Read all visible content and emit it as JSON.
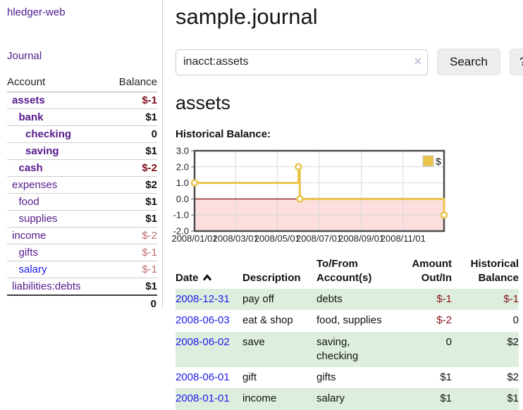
{
  "app": {
    "brand": "hledger-web"
  },
  "nav": {
    "journal": "Journal"
  },
  "sidebar": {
    "header": {
      "account": "Account",
      "balance": "Balance"
    },
    "accounts": [
      {
        "name": "assets",
        "level": 1,
        "bold": true,
        "balance": "$-1",
        "balance_style": "neg-strong"
      },
      {
        "name": "bank",
        "level": 2,
        "bold": true,
        "balance": "$1",
        "balance_style": "pos"
      },
      {
        "name": "checking",
        "level": 3,
        "bold": true,
        "balance": "0",
        "balance_style": "pos"
      },
      {
        "name": "saving",
        "level": 3,
        "bold": true,
        "balance": "$1",
        "balance_style": "pos"
      },
      {
        "name": "cash",
        "level": 2,
        "bold": true,
        "balance": "$-2",
        "balance_style": "neg-strong"
      },
      {
        "name": "expenses",
        "level": 1,
        "bold": false,
        "balance": "$2",
        "balance_style": "pos"
      },
      {
        "name": "food",
        "level": 2,
        "bold": false,
        "balance": "$1",
        "balance_style": "pos"
      },
      {
        "name": "supplies",
        "level": 2,
        "bold": false,
        "balance": "$1",
        "balance_style": "pos"
      },
      {
        "name": "income",
        "level": 1,
        "bold": false,
        "balance": "$-2",
        "balance_style": "neg-soft"
      },
      {
        "name": "gifts",
        "level": 2,
        "bold": false,
        "balance": "$-1",
        "balance_style": "neg-soft"
      },
      {
        "name": "salary",
        "level": 2,
        "bold": false,
        "link_color": "blue",
        "balance": "$-1",
        "balance_style": "neg-soft"
      },
      {
        "name": "liabilities:debts",
        "level": 1,
        "bold": false,
        "balance": "$1",
        "balance_style": "pos"
      }
    ],
    "total": "0"
  },
  "header": {
    "title": "sample.journal"
  },
  "search": {
    "value": "inacct:assets",
    "clear": "×",
    "search_button": "Search",
    "help_button": "?"
  },
  "account_page": {
    "heading": "assets",
    "chart_title": "Historical Balance:"
  },
  "colors": {
    "link_purple": "#551a8b",
    "link_blue": "#1b1be8",
    "negative_dark": "#7d0d1d",
    "negative_soft": "#c06f6f",
    "negative_table": "#881018",
    "row_stripe_green": "#deeede",
    "chart_gold": "#e8c44a",
    "chart_negative_band": "#fcdede",
    "chart_zero_line": "#8b1a1a",
    "chart_grid": "#d8d8d8",
    "chart_border": "#4d4d4d"
  },
  "chart_data": {
    "type": "line",
    "step": "after",
    "title": "Historical Balance:",
    "xlim": [
      "2008-01-01",
      "2008-12-31"
    ],
    "ylim": [
      -2,
      3
    ],
    "y_ticks": [
      "3.0",
      "2.0",
      "1.0",
      "0.0",
      "-1.0",
      "-2.0"
    ],
    "x_ticks": [
      "2008/01/01",
      "2008/03/01",
      "2008/05/01",
      "2008/07/01",
      "2008/09/01",
      "2008/11/01"
    ],
    "grid": true,
    "negative_region_shaded": true,
    "legend": {
      "label": "$",
      "position": "top-right"
    },
    "series": [
      {
        "name": "$",
        "points": [
          {
            "x": "2008-01-01",
            "y": 1
          },
          {
            "x": "2008-06-01",
            "y": 2
          },
          {
            "x": "2008-06-03",
            "y": 0
          },
          {
            "x": "2008-12-31",
            "y": -1
          }
        ]
      }
    ]
  },
  "register": {
    "columns": [
      {
        "label": "Date",
        "sorted": "ascending"
      },
      {
        "label": "Description"
      },
      {
        "label": "To/From\nAccount(s)"
      },
      {
        "label": "Amount\nOut/In"
      },
      {
        "label": "Historical\nBalance"
      }
    ],
    "rows": [
      {
        "date": "2008-12-31",
        "description": "pay off",
        "accounts": "debts",
        "amount": "$-1",
        "amount_negative": true,
        "balance": "$-1",
        "balance_negative": true
      },
      {
        "date": "2008-06-03",
        "description": "eat & shop",
        "accounts": "food, supplies",
        "amount": "$-2",
        "amount_negative": true,
        "balance": "0",
        "balance_negative": false
      },
      {
        "date": "2008-06-02",
        "description": "save",
        "accounts": "saving,\nchecking",
        "amount": "0",
        "amount_negative": false,
        "balance": "$2",
        "balance_negative": false
      },
      {
        "date": "2008-06-01",
        "description": "gift",
        "accounts": "gifts",
        "amount": "$1",
        "amount_negative": false,
        "balance": "$2",
        "balance_negative": false
      },
      {
        "date": "2008-01-01",
        "description": "income",
        "accounts": "salary",
        "amount": "$1",
        "amount_negative": false,
        "balance": "$1",
        "balance_negative": false
      }
    ]
  }
}
